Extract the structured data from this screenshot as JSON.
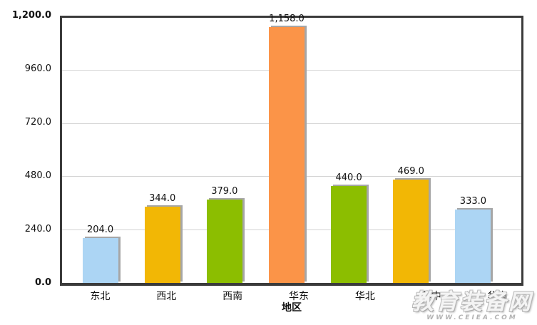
{
  "chart_data": {
    "type": "bar",
    "categories": [
      "东北",
      "西北",
      "西南",
      "华东",
      "华北",
      "华中",
      "华南"
    ],
    "values": [
      204.0,
      344.0,
      379.0,
      1158.0,
      440.0,
      469.0,
      333.0
    ],
    "value_labels": [
      "204.0",
      "344.0",
      "379.0",
      "1,158.0",
      "440.0",
      "469.0",
      "333.0"
    ],
    "bar_colors": [
      "#ACD5F4",
      "#F2B705",
      "#8CBE00",
      "#FB9448",
      "#8CBE00",
      "#F2B705",
      "#ACD5F4"
    ],
    "title": "",
    "xlabel": "地区",
    "ylabel": "",
    "ylim": [
      0,
      1200
    ],
    "ytick_labels": [
      "0.0",
      "240.0",
      "480.0",
      "720.0",
      "960.0",
      "1,200.0"
    ],
    "ytick_values": [
      0,
      240,
      480,
      720,
      960,
      1200
    ],
    "grid": true,
    "legend": false
  },
  "watermark": {
    "site_name": "教育装备网",
    "site_url": "WWW.CEIEA.COM"
  },
  "colors": {
    "axis": "#3b3b3b",
    "gridline": "#d4d4d4",
    "text": "#111111",
    "bar_shadow": "#a6a6a6",
    "background": "#ffffff"
  }
}
